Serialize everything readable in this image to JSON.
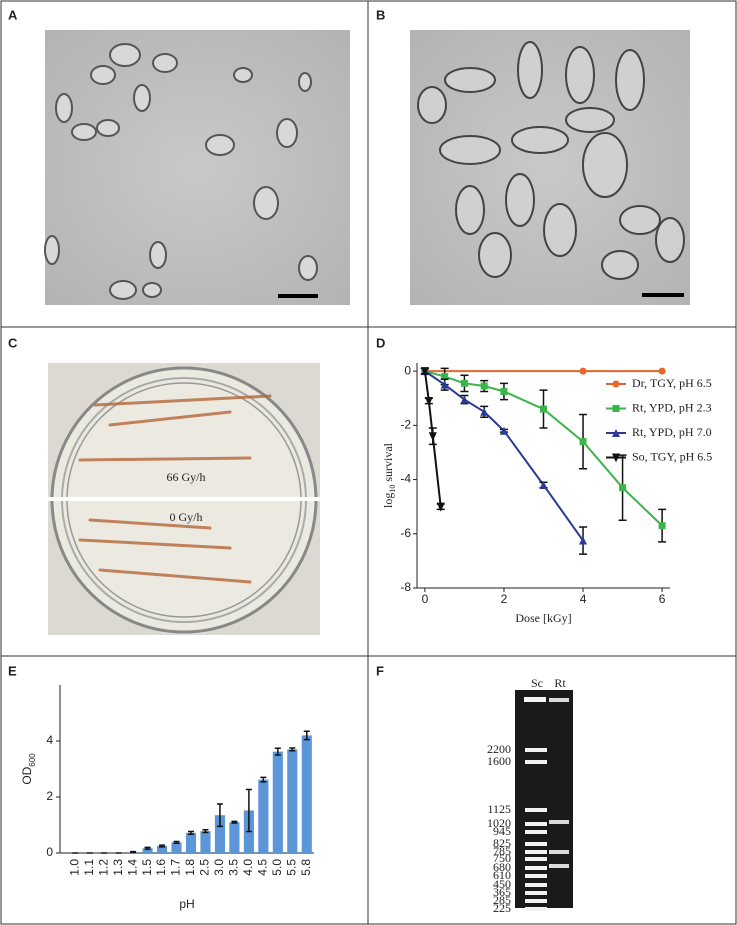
{
  "panels": {
    "a": "A",
    "b": "B",
    "c": "C",
    "d": "D",
    "e": "E",
    "f": "F"
  },
  "plate": {
    "top": "66 Gy/h",
    "bottom": "0 Gy/h"
  },
  "gel": {
    "lanes": [
      "Sc",
      "Rt"
    ],
    "markers": [
      2200,
      1600,
      1125,
      1020,
      945,
      825,
      785,
      750,
      680,
      610,
      450,
      365,
      285,
      225
    ]
  },
  "chart_data": [
    {
      "type": "line",
      "x_label": "Dose [kGy]",
      "y_label": [
        "log",
        "10",
        " survival"
      ],
      "xlim": [
        -0.2,
        6.2
      ],
      "xticks": [
        0,
        2,
        4,
        6
      ],
      "ylim": [
        -8,
        0.3
      ],
      "yticks": [
        0,
        -2,
        -4,
        -6,
        -8
      ],
      "legend": "upper right",
      "series": [
        {
          "name": "Dr, TGY, pH 6.5",
          "color": "#e8642c",
          "marker": "circle",
          "x": [
            0,
            4,
            6
          ],
          "values": [
            0,
            0,
            0
          ]
        },
        {
          "name": "Rt, YPD, pH 2.3",
          "color": "#3bb54a",
          "marker": "square",
          "x": [
            0,
            0.5,
            1,
            1.5,
            2,
            3,
            4,
            5,
            6
          ],
          "values": [
            0,
            -0.2,
            -0.45,
            -0.55,
            -0.75,
            -1.4,
            -2.6,
            -4.3,
            -5.7
          ],
          "errors": [
            0.1,
            0.3,
            0.3,
            0.2,
            0.3,
            0.7,
            1.0,
            1.2,
            0.6
          ]
        },
        {
          "name": "Rt, YPD, pH 7.0",
          "color": "#2b3a93",
          "marker": "triangle",
          "x": [
            0,
            0.5,
            1,
            1.5,
            2,
            3,
            4
          ],
          "values": [
            0,
            -0.5,
            -1.05,
            -1.5,
            -2.2,
            -4.2,
            -6.25
          ],
          "errors": [
            0.1,
            0.2,
            0.15,
            0.2,
            0.05,
            0.1,
            0.5
          ]
        },
        {
          "name": "So, TGY, pH 6.5",
          "color": "#111111",
          "marker": "triangle-down",
          "x": [
            0,
            0.1,
            0.2,
            0.4
          ],
          "values": [
            0,
            -1.1,
            -2.4,
            -5.0
          ],
          "errors": [
            0.1,
            0.1,
            0.3,
            0.1
          ]
        }
      ]
    },
    {
      "type": "bar",
      "x_label": "pH",
      "y_label": [
        "OD",
        "600"
      ],
      "color": "#5a96d8",
      "categories": [
        "1.0",
        "1.1",
        "1.2",
        "1.3",
        "1.4",
        "1.5",
        "1.6",
        "1.7",
        "1.8",
        "2.5",
        "3.0",
        "3.5",
        "4.0",
        "4.5",
        "5.0",
        "5.5",
        "5.8"
      ],
      "values": [
        0,
        0,
        0,
        0,
        0.03,
        0.17,
        0.25,
        0.38,
        0.72,
        0.78,
        1.35,
        1.1,
        1.52,
        2.62,
        3.62,
        3.7,
        4.2
      ],
      "errors": [
        0,
        0,
        0,
        0,
        0.02,
        0.03,
        0.03,
        0.03,
        0.05,
        0.05,
        0.4,
        0.03,
        0.75,
        0.08,
        0.12,
        0.05,
        0.15
      ],
      "ylim": [
        0,
        6
      ],
      "yticks": [
        0,
        2,
        4
      ]
    }
  ]
}
